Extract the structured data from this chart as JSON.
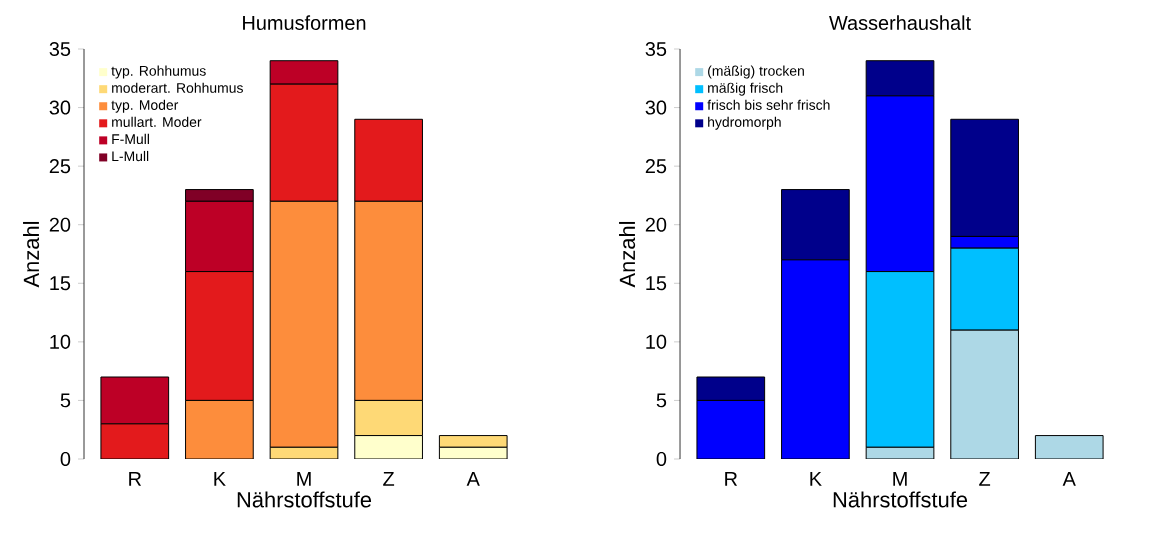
{
  "chart_data": [
    {
      "type": "bar",
      "title": "Humusformen",
      "xlabel": "Nährstoffstufe",
      "ylabel": "Anzahl",
      "categories": [
        "R",
        "K",
        "M",
        "Z",
        "A"
      ],
      "stacked": true,
      "ylim": [
        0,
        35
      ],
      "yticks": [
        0,
        5,
        10,
        15,
        20,
        25,
        30,
        35
      ],
      "legend": "top left",
      "grid": false,
      "series": [
        {
          "name": "typ. Rohhumus",
          "color": "#ffffcc",
          "values": [
            0,
            0,
            0,
            2,
            1
          ]
        },
        {
          "name": "moderart. Rohhumus",
          "color": "#fed976",
          "values": [
            0,
            0,
            1,
            3,
            1
          ]
        },
        {
          "name": "typ. Moder",
          "color": "#fd8d3c",
          "values": [
            0,
            5,
            21,
            17,
            0
          ]
        },
        {
          "name": "mullart. Moder",
          "color": "#e31a1c",
          "values": [
            3,
            11,
            10,
            7,
            0
          ]
        },
        {
          "name": "F-Mull",
          "color": "#bd0026",
          "values": [
            4,
            6,
            2,
            0,
            0
          ]
        },
        {
          "name": "L-Mull",
          "color": "#800026",
          "values": [
            0,
            1,
            0,
            0,
            0
          ]
        }
      ]
    },
    {
      "type": "bar",
      "title": "Wasserhaushalt",
      "xlabel": "Nährstoffstufe",
      "ylabel": "Anzahl",
      "categories": [
        "R",
        "K",
        "M",
        "Z",
        "A"
      ],
      "stacked": true,
      "ylim": [
        0,
        35
      ],
      "yticks": [
        0,
        5,
        10,
        15,
        20,
        25,
        30,
        35
      ],
      "legend": "top left",
      "grid": false,
      "series": [
        {
          "name": "(mäßig) trocken",
          "color": "#add8e6",
          "values": [
            0,
            0,
            1,
            11,
            2
          ]
        },
        {
          "name": "mäßig frisch",
          "color": "#00bfff",
          "values": [
            0,
            0,
            15,
            7,
            0
          ]
        },
        {
          "name": "frisch bis sehr frisch",
          "color": "#0000ff",
          "values": [
            5,
            17,
            15,
            1,
            0
          ]
        },
        {
          "name": "hydromorph",
          "color": "#00008b",
          "values": [
            2,
            6,
            3,
            10,
            0
          ]
        }
      ]
    }
  ]
}
